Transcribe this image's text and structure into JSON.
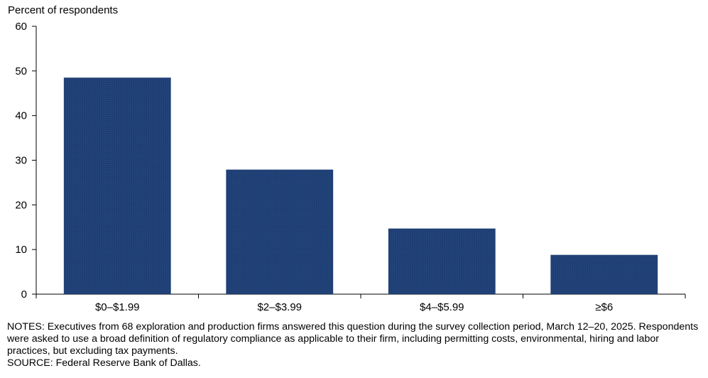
{
  "chart_data": {
    "type": "bar",
    "title": "",
    "ylabel": "Percent of respondents",
    "xlabel": "",
    "categories": [
      "$0–$1.99",
      "$2–$3.99",
      "$4–$5.99",
      "≥$6"
    ],
    "values": [
      48.5,
      27.9,
      14.7,
      8.8
    ],
    "ylim": [
      0,
      60
    ],
    "yticks": [
      0,
      10,
      20,
      30,
      40,
      50,
      60
    ],
    "grid": false,
    "bar_color": "#1f3f74"
  },
  "notes": {
    "notes_text": "NOTES: Executives from 68 exploration and production firms answered this question during the survey collection period, March 12–20, 2025. Respondents were asked to use a broad definition of regulatory compliance as applicable to their firm, including permitting costs, environmental, hiring and labor practices, but excluding tax payments.",
    "source_text": "SOURCE: Federal Reserve Bank of Dallas."
  }
}
